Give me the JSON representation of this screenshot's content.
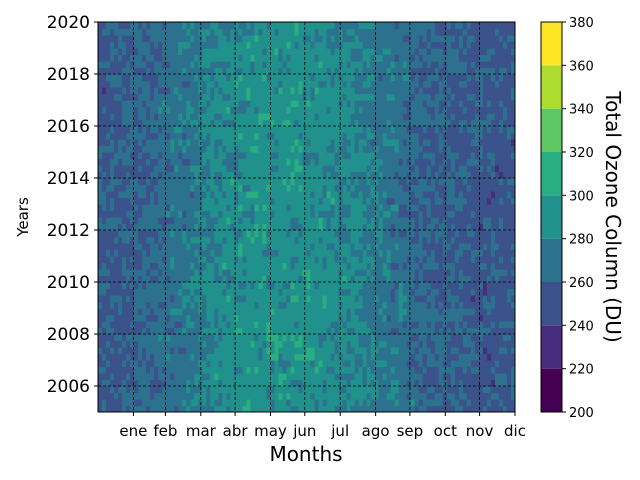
{
  "chart_data": {
    "type": "heatmap",
    "title": "",
    "xlabel": "Months",
    "ylabel": "Years",
    "colorbar_label": "Total Ozone Column (DU)",
    "x_range_day_of_year": [
      1,
      366
    ],
    "month_ticks": [
      {
        "label": "ene",
        "day": 32
      },
      {
        "label": "feb",
        "day": 60
      },
      {
        "label": "mar",
        "day": 91
      },
      {
        "label": "abr",
        "day": 121
      },
      {
        "label": "may",
        "day": 152
      },
      {
        "label": "jun",
        "day": 182
      },
      {
        "label": "jul",
        "day": 213
      },
      {
        "label": "ago",
        "day": 244
      },
      {
        "label": "sep",
        "day": 274
      },
      {
        "label": "oct",
        "day": 305
      },
      {
        "label": "nov",
        "day": 335
      },
      {
        "label": "dic",
        "day": 366
      }
    ],
    "y_range": [
      2005,
      2020
    ],
    "y_ticks": [
      2006,
      2008,
      2010,
      2012,
      2014,
      2016,
      2018,
      2020
    ],
    "grid": true,
    "grid_style": "dashed",
    "colorbar": {
      "levels": [
        200,
        220,
        240,
        260,
        280,
        300,
        320,
        340,
        360,
        380
      ],
      "colors": [
        "#440154",
        "#472d7b",
        "#3b528b",
        "#2c728e",
        "#21918c",
        "#28ae80",
        "#5ec962",
        "#addc30",
        "#fde725"
      ]
    },
    "seasonal_mean_by_month": {
      "months": [
        "ene",
        "feb",
        "mar",
        "abr",
        "may",
        "jun",
        "jul",
        "ago",
        "sep",
        "oct",
        "nov",
        "dic"
      ],
      "values_DU": [
        258,
        262,
        272,
        284,
        290,
        290,
        288,
        280,
        272,
        262,
        256,
        254
      ]
    }
  }
}
